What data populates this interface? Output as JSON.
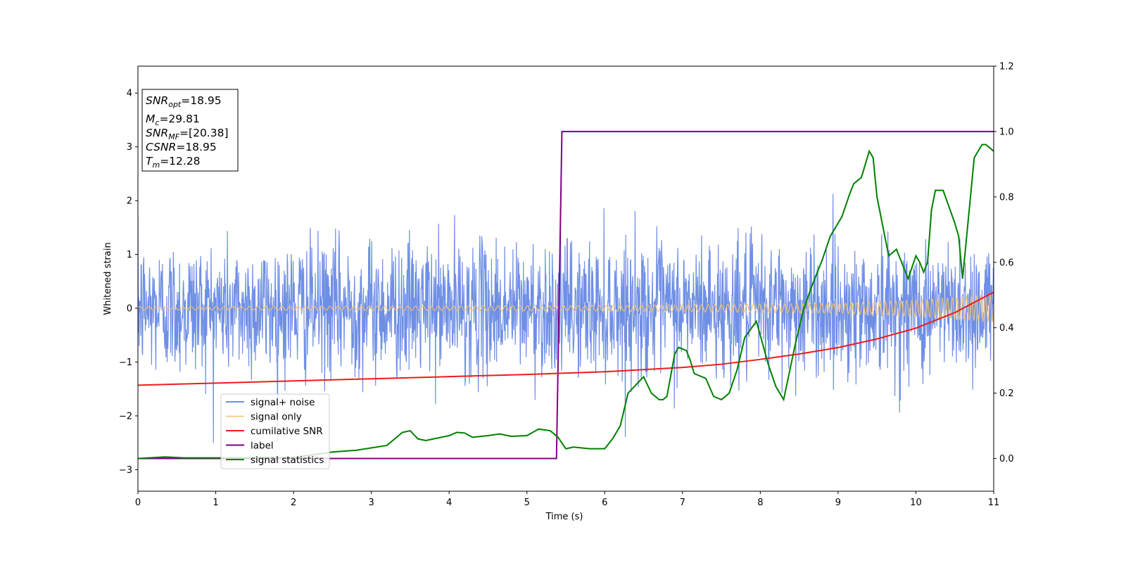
{
  "chart_data": {
    "type": "line",
    "title": "",
    "xlabel": "Time (s)",
    "ylabel": "Whitened strain",
    "xlim": [
      0,
      11
    ],
    "ylim": [
      -3.4,
      4.5
    ],
    "y2lim": [
      -0.1,
      1.2
    ],
    "x_ticks": [
      "0",
      "1",
      "2",
      "3",
      "4",
      "5",
      "6",
      "7",
      "8",
      "9",
      "10",
      "11"
    ],
    "y_ticks": [
      "−3",
      "−2",
      "−1",
      "0",
      "1",
      "2",
      "3",
      "4"
    ],
    "y2_ticks": [
      "0.0",
      "0.2",
      "0.4",
      "0.6",
      "0.8",
      "1.0",
      "1.2"
    ],
    "grid": false,
    "legend_placement": "lower-left",
    "colors": {
      "signal_noise": "#6f8fe6",
      "signal_only": "#f3c26e",
      "cumulative_snr": "#ee1c1c",
      "label": "#800080",
      "signal_statistics": "#008000"
    },
    "annotation": {
      "items": [
        {
          "base": "SNR",
          "sub": "opt",
          "value": "=18.95"
        },
        {
          "base": "M",
          "sub": "c",
          "value": "=29.81"
        },
        {
          "base": "SNR",
          "sub": "MF",
          "value": "=[20.38]"
        },
        {
          "base": "CSNR",
          "sub": "",
          "value": "=18.95"
        },
        {
          "base": "T",
          "sub": "m",
          "value": "=12.28"
        }
      ]
    },
    "series": [
      {
        "name": "signal+ noise",
        "axis": "left",
        "kind": "noise",
        "noise_std": 0.62,
        "envelope_max": 2.55,
        "envelope_min": -2.5,
        "samples_shown": 2200
      },
      {
        "name": "signal only",
        "axis": "left",
        "kind": "chirp",
        "amplitude": [
          [
            0,
            0.03
          ],
          [
            6,
            0.05
          ],
          [
            9,
            0.09
          ],
          [
            10,
            0.15
          ],
          [
            11,
            0.25
          ]
        ],
        "frequency_hz": [
          [
            0,
            9
          ],
          [
            6,
            11
          ],
          [
            9,
            13
          ],
          [
            11,
            17
          ]
        ]
      },
      {
        "name": "cumilative SNR",
        "axis": "left",
        "x": [
          0,
          1,
          2,
          3,
          4,
          5,
          6,
          7,
          7.5,
          8,
          8.5,
          9,
          9.5,
          10,
          10.5,
          11
        ],
        "y": [
          -1.43,
          -1.39,
          -1.35,
          -1.31,
          -1.27,
          -1.23,
          -1.18,
          -1.1,
          -1.04,
          -0.95,
          -0.85,
          -0.73,
          -0.57,
          -0.37,
          -0.08,
          0.3
        ]
      },
      {
        "name": "label",
        "axis": "right",
        "x": [
          0,
          5.38,
          5.45,
          11
        ],
        "y": [
          0,
          0,
          1,
          1
        ]
      },
      {
        "name": "signal statistics",
        "axis": "right",
        "x": [
          0,
          0.35,
          0.6,
          1,
          2,
          2.5,
          2.8,
          3.2,
          3.4,
          3.5,
          3.6,
          3.7,
          3.8,
          4.0,
          4.1,
          4.2,
          4.3,
          4.5,
          4.65,
          4.8,
          5.0,
          5.15,
          5.3,
          5.4,
          5.5,
          5.6,
          5.8,
          6.0,
          6.05,
          6.1,
          6.2,
          6.3,
          6.5,
          6.6,
          6.7,
          6.75,
          6.8,
          6.9,
          6.95,
          7.05,
          7.1,
          7.15,
          7.3,
          7.4,
          7.5,
          7.6,
          7.7,
          7.8,
          7.95,
          8.1,
          8.2,
          8.3,
          8.45,
          8.55,
          8.65,
          8.7,
          8.8,
          8.9,
          9.0,
          9.05,
          9.15,
          9.2,
          9.3,
          9.4,
          9.45,
          9.5,
          9.6,
          9.65,
          9.75,
          9.9,
          10.0,
          10.05,
          10.1,
          10.15,
          10.2,
          10.25,
          10.35,
          10.5,
          10.55,
          10.6,
          10.75,
          10.85,
          10.9,
          11.0
        ],
        "y": [
          0.0,
          0.005,
          0.002,
          0.002,
          0.003,
          0.02,
          0.025,
          0.04,
          0.08,
          0.085,
          0.06,
          0.055,
          0.06,
          0.07,
          0.08,
          0.078,
          0.065,
          0.07,
          0.075,
          0.068,
          0.07,
          0.09,
          0.085,
          0.065,
          0.03,
          0.035,
          0.03,
          0.03,
          0.045,
          0.06,
          0.1,
          0.2,
          0.25,
          0.2,
          0.18,
          0.18,
          0.19,
          0.32,
          0.34,
          0.33,
          0.3,
          0.26,
          0.245,
          0.19,
          0.18,
          0.2,
          0.27,
          0.37,
          0.42,
          0.29,
          0.22,
          0.18,
          0.35,
          0.45,
          0.52,
          0.55,
          0.61,
          0.68,
          0.72,
          0.74,
          0.81,
          0.84,
          0.86,
          0.94,
          0.92,
          0.8,
          0.68,
          0.62,
          0.64,
          0.55,
          0.62,
          0.6,
          0.57,
          0.6,
          0.76,
          0.82,
          0.82,
          0.72,
          0.68,
          0.55,
          0.92,
          0.96,
          0.96,
          0.94
        ]
      }
    ]
  }
}
